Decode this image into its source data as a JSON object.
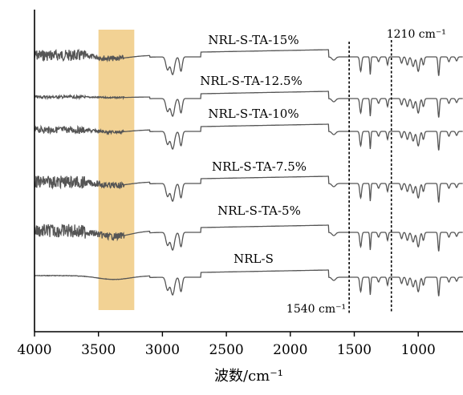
{
  "chart_data": {
    "type": "line",
    "title": "",
    "xlabel": "波数/cm⁻¹",
    "ylabel": "",
    "xlim": [
      4000,
      650
    ],
    "x_reversed": true,
    "xticks": [
      4000,
      3500,
      3000,
      2500,
      2000,
      1500,
      1000
    ],
    "grid": false,
    "legend": "none (labels placed above each curve)",
    "highlight_band": {
      "from": 3500,
      "to": 3220,
      "color": "#f2d294"
    },
    "reference_lines": [
      {
        "x": 1540,
        "label": "1540 cm⁻¹",
        "style": "dashed"
      },
      {
        "x": 1210,
        "label": "1210 cm⁻¹",
        "style": "dashed"
      }
    ],
    "line_color": "#555555",
    "series": [
      {
        "name": "NRL-S-TA-15%",
        "noise": 1.0,
        "broad_oh": 0.5
      },
      {
        "name": "NRL-S-TA-12.5%",
        "noise": 0.25,
        "broad_oh": 0.1
      },
      {
        "name": "NRL-S-TA-10%",
        "noise": 0.6,
        "broad_oh": 0.35
      },
      {
        "name": "NRL-S-TA-7.5%",
        "noise": 1.1,
        "broad_oh": 0.55
      },
      {
        "name": "NRL-S-TA-5%",
        "noise": 1.2,
        "broad_oh": 0.9
      },
      {
        "name": "NRL-S",
        "noise": 0.05,
        "broad_oh": 0.6
      }
    ]
  }
}
